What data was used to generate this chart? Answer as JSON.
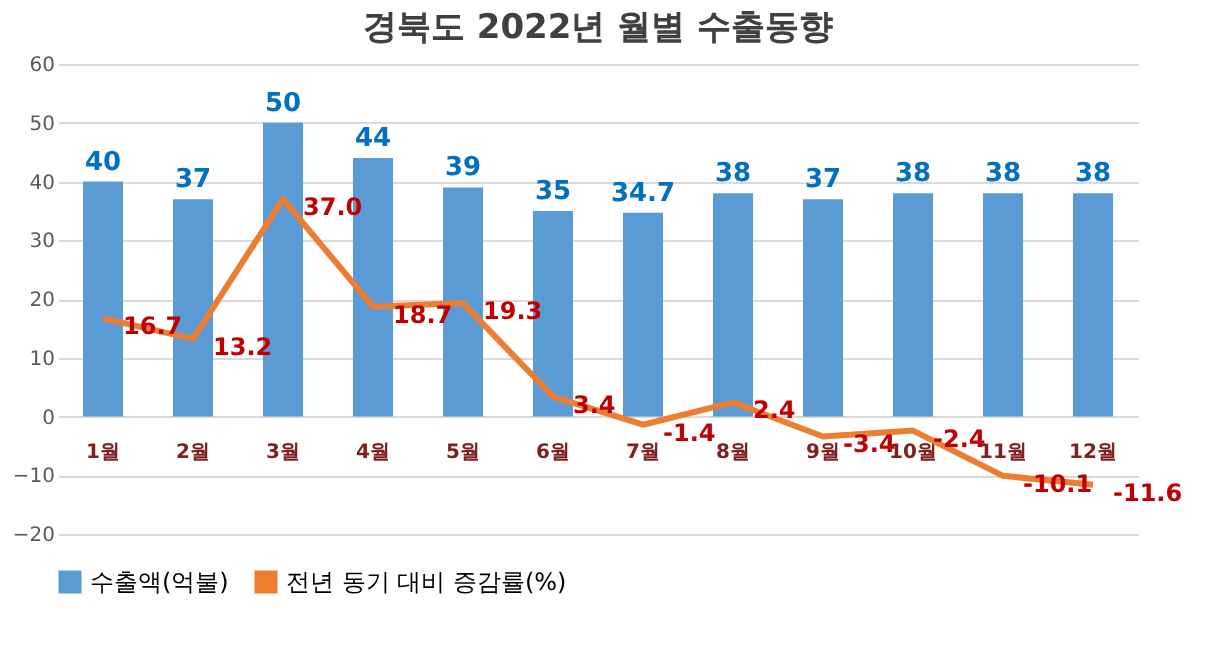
{
  "chart_data": {
    "type": "bar",
    "title": "경북도 2022년 월별 수출동향",
    "categories": [
      "1월",
      "2월",
      "3월",
      "4월",
      "5월",
      "6월",
      "7월",
      "8월",
      "9월",
      "10월",
      "11월",
      "12월"
    ],
    "series": [
      {
        "name": "수출액(억불)",
        "color": "#5b9bd5",
        "values": [
          40,
          37,
          50,
          44,
          39,
          35,
          34.7,
          38,
          37,
          38,
          38,
          38
        ],
        "data_labels": true
      },
      {
        "name": "전년 동기 대비 증감률(%)",
        "type": "line",
        "color": "#ed7d31",
        "values": [
          16.7,
          13.2,
          37.0,
          18.7,
          19.3,
          3.4,
          -1.4,
          2.4,
          -3.4,
          -2.4,
          -10.1,
          -11.6
        ],
        "value_labels": [
          "16.7",
          "13.2",
          "37.0",
          "18.7",
          "19.3",
          "3.4",
          "-1.4",
          "2.4",
          "-3.4",
          "-2.4",
          "-10.1",
          "-11.6"
        ]
      }
    ],
    "ylim": [
      -20,
      60
    ],
    "yticks": [
      -20,
      -10,
      0,
      10,
      20,
      30,
      40,
      50,
      60
    ],
    "grid": "y",
    "legend": "bottom",
    "marker": "none",
    "line_style": "solid"
  }
}
